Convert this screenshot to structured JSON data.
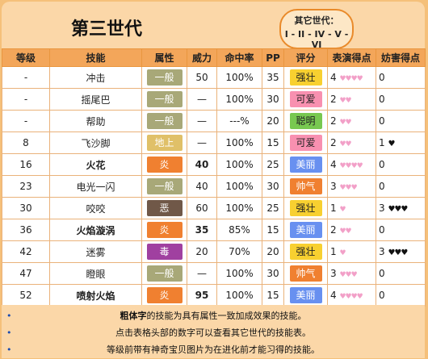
{
  "header": {
    "title": "第三世代",
    "other_gen_label": "其它世代：",
    "other_gen_links": [
      "I",
      "II",
      "IV",
      "V",
      "VI"
    ]
  },
  "table": {
    "columns": [
      "等级",
      "技能",
      "属性",
      "威力",
      "命中率",
      "PP",
      "评分",
      "表演得点",
      "妨害得点"
    ],
    "rows": [
      {
        "level": "-",
        "move": "冲击",
        "bold": false,
        "type": "一般",
        "type_color": "#a8a878",
        "power": "50",
        "power_bold": false,
        "acc": "100%",
        "pp": "35",
        "cond": "强壮",
        "cond_color": "#f8d030",
        "appeal": "4",
        "appeal_hearts": "♥♥♥♥",
        "jam": "0",
        "jam_hearts": ""
      },
      {
        "level": "-",
        "move": "摇尾巴",
        "bold": false,
        "type": "一般",
        "type_color": "#a8a878",
        "power": "—",
        "power_bold": false,
        "acc": "100%",
        "pp": "30",
        "cond": "可爱",
        "cond_color": "#f890b0",
        "appeal": "2",
        "appeal_hearts": "♥♥",
        "jam": "0",
        "jam_hearts": ""
      },
      {
        "level": "-",
        "move": "帮助",
        "bold": false,
        "type": "一般",
        "type_color": "#a8a878",
        "power": "—",
        "power_bold": false,
        "acc": "---%",
        "pp": "20",
        "cond": "聪明",
        "cond_color": "#78c850",
        "appeal": "2",
        "appeal_hearts": "♥♥",
        "jam": "0",
        "jam_hearts": ""
      },
      {
        "level": "8",
        "move": "飞沙脚",
        "bold": false,
        "type": "地上",
        "type_color": "#e0c068",
        "power": "—",
        "power_bold": false,
        "acc": "100%",
        "pp": "15",
        "cond": "可爱",
        "cond_color": "#f890b0",
        "appeal": "2",
        "appeal_hearts": "♥♥",
        "jam": "1",
        "jam_hearts": "♥"
      },
      {
        "level": "16",
        "move": "火花",
        "bold": true,
        "type": "炎",
        "type_color": "#f08030",
        "power": "40",
        "power_bold": true,
        "acc": "100%",
        "pp": "25",
        "cond": "美丽",
        "cond_color": "#6890f0",
        "appeal": "4",
        "appeal_hearts": "♥♥♥♥",
        "jam": "0",
        "jam_hearts": ""
      },
      {
        "level": "23",
        "move": "电光一闪",
        "bold": false,
        "type": "一般",
        "type_color": "#a8a878",
        "power": "40",
        "power_bold": false,
        "acc": "100%",
        "pp": "30",
        "cond": "帅气",
        "cond_color": "#f08030",
        "appeal": "3",
        "appeal_hearts": "♥♥♥",
        "jam": "0",
        "jam_hearts": ""
      },
      {
        "level": "30",
        "move": "咬咬",
        "bold": false,
        "type": "恶",
        "type_color": "#705848",
        "power": "60",
        "power_bold": false,
        "acc": "100%",
        "pp": "25",
        "cond": "强壮",
        "cond_color": "#f8d030",
        "appeal": "1",
        "appeal_hearts": "♥",
        "jam": "3",
        "jam_hearts": "♥♥♥"
      },
      {
        "level": "36",
        "move": "火焰漩涡",
        "bold": true,
        "type": "炎",
        "type_color": "#f08030",
        "power": "35",
        "power_bold": true,
        "acc": "85%",
        "pp": "15",
        "cond": "美丽",
        "cond_color": "#6890f0",
        "appeal": "2",
        "appeal_hearts": "♥♥",
        "jam": "0",
        "jam_hearts": ""
      },
      {
        "level": "42",
        "move": "迷雾",
        "bold": false,
        "type": "毒",
        "type_color": "#a040a0",
        "power": "20",
        "power_bold": false,
        "acc": "70%",
        "pp": "20",
        "cond": "强壮",
        "cond_color": "#f8d030",
        "appeal": "1",
        "appeal_hearts": "♥",
        "jam": "3",
        "jam_hearts": "♥♥♥"
      },
      {
        "level": "47",
        "move": "瞪眼",
        "bold": false,
        "type": "一般",
        "type_color": "#a8a878",
        "power": "—",
        "power_bold": false,
        "acc": "100%",
        "pp": "30",
        "cond": "帅气",
        "cond_color": "#f08030",
        "appeal": "3",
        "appeal_hearts": "♥♥♥",
        "jam": "0",
        "jam_hearts": ""
      },
      {
        "level": "52",
        "move": "喷射火焰",
        "bold": true,
        "type": "炎",
        "type_color": "#f08030",
        "power": "95",
        "power_bold": true,
        "acc": "100%",
        "pp": "15",
        "cond": "美丽",
        "cond_color": "#6890f0",
        "appeal": "4",
        "appeal_hearts": "♥♥♥♥",
        "jam": "0",
        "jam_hearts": ""
      }
    ]
  },
  "notes": [
    {
      "bold_part": "粗体字",
      "text": "的技能为具有属性一致加成效果的技能。"
    },
    {
      "bold_part": "",
      "text": "点击表格头部的数字可以查看其它世代的技能表。"
    },
    {
      "bold_part": "",
      "text": "等级前带有神奇宝贝图片为在进化前才能习得的技能。"
    }
  ]
}
